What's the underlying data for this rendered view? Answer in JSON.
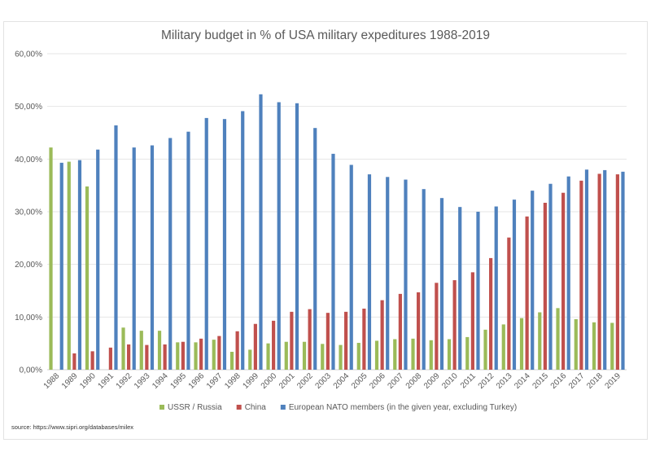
{
  "chart_data": {
    "type": "bar",
    "title": "Military budget in % of USA military expeditures 1988-2019",
    "source": "source: https://www.sipri.org/databases/milex",
    "ylim": [
      0,
      60
    ],
    "yticks": [
      "0,00%",
      "10,00%",
      "20,00%",
      "30,00%",
      "40,00%",
      "50,00%",
      "60,00%"
    ],
    "grid": true,
    "legend_position": "bottom",
    "categories": [
      "1988",
      "1989",
      "1990",
      "1991",
      "1992",
      "1993",
      "1994",
      "1995",
      "1996",
      "1997",
      "1998",
      "1999",
      "2000",
      "2001",
      "2002",
      "2003",
      "2004",
      "2005",
      "2006",
      "2007",
      "2008",
      "2009",
      "2010",
      "2011",
      "2012",
      "2013",
      "2014",
      "2015",
      "2016",
      "2017",
      "2018",
      "2019"
    ],
    "series": [
      {
        "name": "USSR / Russia",
        "color": "#9bbb59",
        "values": [
          42.2,
          39.5,
          34.8,
          0,
          8.0,
          7.4,
          7.4,
          5.2,
          5.2,
          5.7,
          3.4,
          3.8,
          5.0,
          5.3,
          5.3,
          4.9,
          4.7,
          5.1,
          5.5,
          5.8,
          5.9,
          5.6,
          5.8,
          6.2,
          7.6,
          8.6,
          9.8,
          10.9,
          11.7,
          9.6,
          9.0,
          8.9
        ]
      },
      {
        "name": "China",
        "color": "#c0504d",
        "values": [
          0,
          3.1,
          3.5,
          4.2,
          4.8,
          4.7,
          4.8,
          5.3,
          5.9,
          6.4,
          7.3,
          8.7,
          9.3,
          11.0,
          11.5,
          10.8,
          11.0,
          11.6,
          13.2,
          14.4,
          14.7,
          16.5,
          17.0,
          18.5,
          21.2,
          25.1,
          29.1,
          31.7,
          33.6,
          35.9,
          37.2,
          37.1
        ]
      },
      {
        "name": "European NATO members (in the given year, excluding Turkey)",
        "color": "#4f81bd",
        "values": [
          39.3,
          39.8,
          41.8,
          46.4,
          42.2,
          42.6,
          44.0,
          45.2,
          47.8,
          47.6,
          49.1,
          52.3,
          50.8,
          50.6,
          45.9,
          41.0,
          38.9,
          37.1,
          36.6,
          36.1,
          34.3,
          32.6,
          30.9,
          30.0,
          31.0,
          32.3,
          34.0,
          35.3,
          36.7,
          38.0,
          37.9,
          37.6
        ]
      }
    ]
  }
}
